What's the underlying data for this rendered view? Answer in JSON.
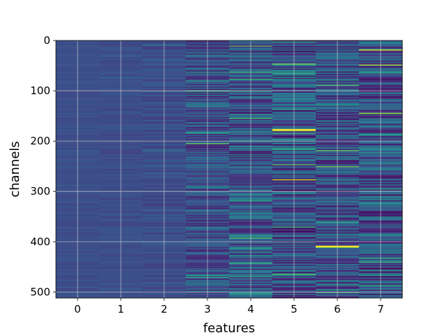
{
  "chart_data": {
    "type": "heatmap",
    "title": "",
    "xlabel": "features",
    "ylabel": "channels",
    "x_ticks": [
      "0",
      "1",
      "2",
      "3",
      "4",
      "5",
      "6",
      "7"
    ],
    "y_ticks": [
      "0",
      "100",
      "200",
      "300",
      "400",
      "500"
    ],
    "xlim": [
      -0.5,
      7.5
    ],
    "ylim": [
      512,
      0
    ],
    "n_rows": 512,
    "n_cols": 8,
    "grid": true,
    "colormap": "viridis",
    "colors": {
      "background": "#3b528b",
      "grid": "#cfcfcf"
    },
    "column_variability": [
      0.05,
      0.07,
      0.12,
      0.3,
      0.38,
      0.42,
      0.38,
      0.4
    ],
    "highlights": [
      {
        "col": 4,
        "row": 11,
        "value": 0.72
      },
      {
        "col": 7,
        "row": 19,
        "value": 0.95
      },
      {
        "col": 7,
        "row": 48,
        "value": 0.85
      },
      {
        "col": 3,
        "row": 100,
        "value": 0.65
      },
      {
        "col": 7,
        "row": 145,
        "value": 0.85
      },
      {
        "col": 5,
        "row": 177,
        "value": 1.0
      },
      {
        "col": 5,
        "row": 179,
        "value": 0.95
      },
      {
        "col": 3,
        "row": 205,
        "value": 0.75
      },
      {
        "col": 5,
        "row": 246,
        "value": 0.72
      },
      {
        "col": 5,
        "row": 276,
        "value": 0.92
      },
      {
        "col": 6,
        "row": 408,
        "value": 1.0
      },
      {
        "col": 6,
        "row": 410,
        "value": 0.9
      },
      {
        "col": 5,
        "row": 464,
        "value": 0.7
      }
    ]
  }
}
